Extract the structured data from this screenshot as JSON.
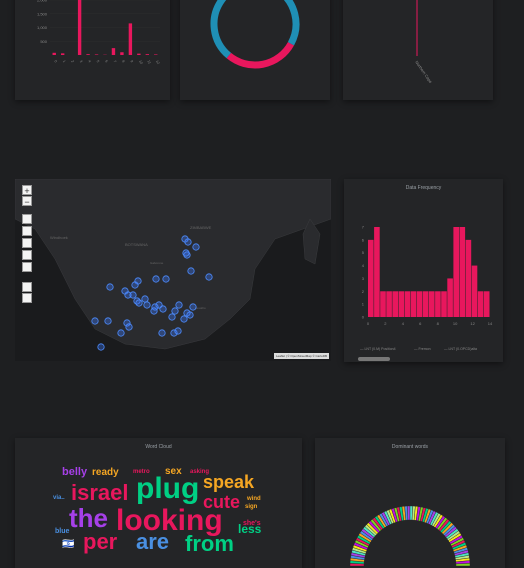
{
  "bar_chart": {
    "chart_data": {
      "type": "bar",
      "title": "",
      "y_ticks": [
        "2,000",
        "1,500",
        "1,000",
        "500"
      ],
      "categories": [
        "0",
        "1",
        "2",
        "3",
        "4",
        "5",
        "6",
        "7",
        "8",
        "9",
        "10",
        "11",
        "12"
      ],
      "values": [
        80,
        60,
        0,
        2000,
        30,
        20,
        10,
        250,
        100,
        1150,
        50,
        30,
        20
      ],
      "ylim": [
        0,
        2000
      ],
      "color": "#e8175d"
    }
  },
  "donut_chart": {
    "chart_data": {
      "type": "pie",
      "values": [
        72,
        28
      ],
      "colors": [
        "#1f8fb5",
        "#e8175d"
      ]
    }
  },
  "line_chart": {
    "label": "Northern Cape"
  },
  "map": {
    "zoom_in": "+",
    "zoom_out": "−",
    "attribution": "Leaflet | © OpenStreetMap © CartoDB",
    "country_labels": [
      "BOTSWANA",
      "ZIMBABWE",
      "Windhoek",
      "Gaborone",
      "Lesotho"
    ]
  },
  "histogram": {
    "title": "Data Frequency",
    "chart_data": {
      "type": "bar",
      "categories": [
        "0",
        "1",
        "2",
        "3",
        "4",
        "5",
        "6",
        "7",
        "8",
        "9",
        "10",
        "11",
        "12",
        "13",
        "14",
        "15",
        "16",
        "17",
        "18",
        "19"
      ],
      "values": [
        6,
        7,
        2,
        2,
        2,
        2,
        2,
        2,
        2,
        2,
        2,
        2,
        2,
        3,
        7,
        7,
        6,
        4,
        2,
        2
      ],
      "y_ticks": [
        "0",
        "1",
        "2",
        "3",
        "4",
        "5",
        "6",
        "7"
      ],
      "x_ticks": [
        "0",
        "2",
        "4",
        "6",
        "8",
        "10",
        "12",
        "14"
      ],
      "ylim": [
        0,
        7
      ],
      "color": "#e8175d"
    },
    "legend": [
      "— LNT (0.M) Position4",
      "— Fremon",
      "— LNT (0.OPCD)alta"
    ]
  },
  "word_cloud": {
    "title": "Word Cloud",
    "words": [
      {
        "text": "belly",
        "color": "#a640e8",
        "size": 11
      },
      {
        "text": "ready",
        "color": "#f5a623",
        "size": 10
      },
      {
        "text": "metro",
        "color": "#e8175d",
        "size": 6
      },
      {
        "text": "sex",
        "color": "#f5a623",
        "size": 10
      },
      {
        "text": "asking",
        "color": "#e8175d",
        "size": 6
      },
      {
        "text": "via..",
        "color": "#4a90e2",
        "size": 6
      },
      {
        "text": "israel",
        "color": "#e8175d",
        "size": 22
      },
      {
        "text": "plug",
        "color": "#00d084",
        "size": 30
      },
      {
        "text": "speak",
        "color": "#f5a623",
        "size": 18
      },
      {
        "text": "cute",
        "color": "#e8175d",
        "size": 18
      },
      {
        "text": "wind",
        "color": "#f5a623",
        "size": 6
      },
      {
        "text": "sign",
        "color": "#f5a623",
        "size": 6
      },
      {
        "text": "blue",
        "color": "#4a90e2",
        "size": 7
      },
      {
        "text": "the",
        "color": "#a640e8",
        "size": 26
      },
      {
        "text": "looking",
        "color": "#e8175d",
        "size": 30
      },
      {
        "text": "she's",
        "color": "#e8175d",
        "size": 7
      },
      {
        "text": "less",
        "color": "#00d084",
        "size": 12
      },
      {
        "text": "🇮🇱",
        "color": "#ffffff",
        "size": 10
      },
      {
        "text": "per",
        "color": "#e8175d",
        "size": 22
      },
      {
        "text": "are",
        "color": "#4a90e2",
        "size": 22
      },
      {
        "text": "from",
        "color": "#00d084",
        "size": 22
      }
    ]
  },
  "dominant_words": {
    "title": "Dominant words"
  }
}
